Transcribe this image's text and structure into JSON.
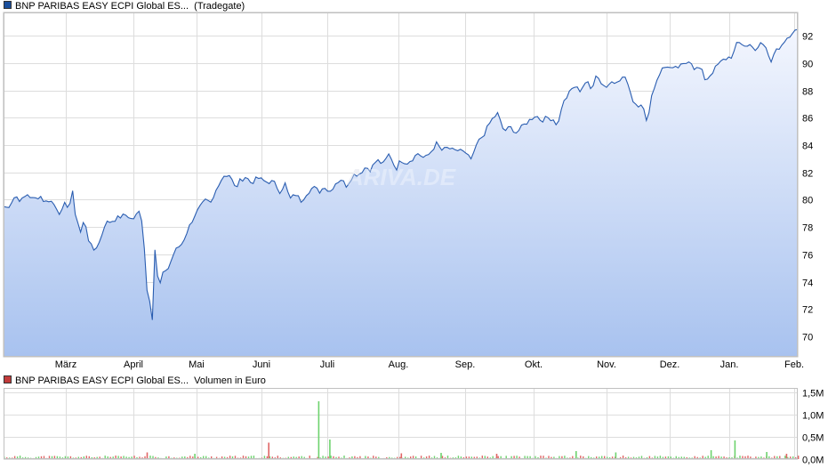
{
  "price_legend": {
    "name": "BNP PARIBAS EASY ECPI Global ES...",
    "exchange": "(Tradegate)",
    "color": "#1a4f9c"
  },
  "volume_legend": {
    "name": "BNP PARIBAS EASY ECPI Global ES...",
    "unit": "Volumen in Euro",
    "color": "#c23b3b"
  },
  "watermark": "ARIVA.DE",
  "colors": {
    "line": "#2a5db0",
    "area_top": "#f3f6fe",
    "area_bottom": "#a8c2ef",
    "grid": "#dddddd",
    "vol_up": "#6ed36e",
    "vol_down": "#e06666"
  },
  "chart_data": [
    {
      "type": "area",
      "series": [
        {
          "name": "BNP PARIBAS EASY ECPI Global ES...",
          "exchange": "Tradegate"
        }
      ],
      "x_ticks": [
        "März",
        "April",
        "Mai",
        "Juni",
        "Juli",
        "Aug.",
        "Sep.",
        "Okt.",
        "Nov.",
        "Dez.",
        "Jan.",
        "Feb."
      ],
      "y_ticks": [
        "70",
        "72",
        "74",
        "76",
        "78",
        "80",
        "82",
        "84",
        "86",
        "88",
        "90",
        "92"
      ],
      "ylim": [
        68.5,
        93.7
      ],
      "grid": true,
      "keypoints": [
        [
          0,
          79.5
        ],
        [
          0.005,
          79.4
        ],
        [
          0.015,
          80.3
        ],
        [
          0.022,
          79.9
        ],
        [
          0.03,
          80.4
        ],
        [
          0.038,
          80.0
        ],
        [
          0.046,
          80.3
        ],
        [
          0.052,
          79.8
        ],
        [
          0.058,
          80.0
        ],
        [
          0.066,
          79.5
        ],
        [
          0.072,
          78.9
        ],
        [
          0.078,
          79.8
        ],
        [
          0.082,
          79.4
        ],
        [
          0.087,
          80.5
        ],
        [
          0.09,
          79.1
        ],
        [
          0.097,
          77.6
        ],
        [
          0.102,
          78.6
        ],
        [
          0.108,
          76.8
        ],
        [
          0.114,
          76.3
        ],
        [
          0.121,
          76.9
        ],
        [
          0.128,
          78.3
        ],
        [
          0.135,
          78.4
        ],
        [
          0.145,
          78.7
        ],
        [
          0.155,
          78.9
        ],
        [
          0.162,
          78.5
        ],
        [
          0.172,
          79.2
        ],
        [
          0.176,
          77.9
        ],
        [
          0.18,
          73.5
        ],
        [
          0.185,
          72.5
        ],
        [
          0.188,
          71.0
        ],
        [
          0.191,
          77.1
        ],
        [
          0.195,
          73.4
        ],
        [
          0.202,
          74.8
        ],
        [
          0.208,
          75.0
        ],
        [
          0.213,
          75.9
        ],
        [
          0.218,
          76.4
        ],
        [
          0.225,
          76.8
        ],
        [
          0.232,
          77.8
        ],
        [
          0.24,
          78.8
        ],
        [
          0.248,
          79.5
        ],
        [
          0.254,
          79.9
        ],
        [
          0.262,
          79.7
        ],
        [
          0.27,
          81.1
        ],
        [
          0.278,
          81.8
        ],
        [
          0.285,
          81.8
        ],
        [
          0.292,
          80.8
        ],
        [
          0.298,
          81.4
        ],
        [
          0.305,
          81.7
        ],
        [
          0.312,
          81.2
        ],
        [
          0.32,
          81.6
        ],
        [
          0.33,
          81.3
        ],
        [
          0.34,
          81.3
        ],
        [
          0.348,
          80.6
        ],
        [
          0.355,
          81.2
        ],
        [
          0.36,
          80.0
        ],
        [
          0.368,
          80.4
        ],
        [
          0.375,
          79.9
        ],
        [
          0.382,
          80.5
        ],
        [
          0.39,
          80.9
        ],
        [
          0.398,
          80.6
        ],
        [
          0.405,
          81.0
        ],
        [
          0.41,
          80.5
        ],
        [
          0.418,
          81.2
        ],
        [
          0.425,
          81.5
        ],
        [
          0.432,
          81.0
        ],
        [
          0.44,
          81.8
        ],
        [
          0.448,
          81.9
        ],
        [
          0.456,
          82.4
        ],
        [
          0.462,
          82.2
        ],
        [
          0.47,
          82.9
        ],
        [
          0.478,
          82.6
        ],
        [
          0.486,
          83.4
        ],
        [
          0.494,
          82.2
        ],
        [
          0.5,
          82.9
        ],
        [
          0.508,
          82.7
        ],
        [
          0.515,
          83.0
        ],
        [
          0.522,
          83.4
        ],
        [
          0.53,
          83.0
        ],
        [
          0.537,
          83.4
        ],
        [
          0.545,
          84.1
        ],
        [
          0.552,
          83.6
        ],
        [
          0.56,
          83.8
        ],
        [
          0.568,
          83.5
        ],
        [
          0.575,
          83.7
        ],
        [
          0.582,
          83.3
        ],
        [
          0.59,
          82.9
        ],
        [
          0.596,
          84.1
        ],
        [
          0.605,
          84.8
        ],
        [
          0.614,
          85.8
        ],
        [
          0.622,
          86.3
        ],
        [
          0.63,
          85.0
        ],
        [
          0.638,
          85.3
        ],
        [
          0.646,
          84.9
        ],
        [
          0.654,
          85.4
        ],
        [
          0.662,
          85.8
        ],
        [
          0.67,
          86.2
        ],
        [
          0.677,
          85.8
        ],
        [
          0.685,
          86.0
        ],
        [
          0.692,
          85.9
        ],
        [
          0.698,
          85.4
        ],
        [
          0.703,
          86.9
        ],
        [
          0.71,
          87.6
        ],
        [
          0.718,
          88.3
        ],
        [
          0.726,
          88.0
        ],
        [
          0.734,
          88.7
        ],
        [
          0.74,
          88.0
        ],
        [
          0.746,
          89.2
        ],
        [
          0.752,
          88.6
        ],
        [
          0.759,
          88.2
        ],
        [
          0.766,
          88.8
        ],
        [
          0.773,
          88.5
        ],
        [
          0.78,
          89.0
        ],
        [
          0.786,
          88.6
        ],
        [
          0.792,
          87.3
        ],
        [
          0.798,
          86.9
        ],
        [
          0.804,
          87.1
        ],
        [
          0.81,
          85.5
        ],
        [
          0.815,
          87.4
        ],
        [
          0.822,
          88.7
        ],
        [
          0.828,
          89.5
        ],
        [
          0.836,
          89.8
        ],
        [
          0.842,
          89.5
        ],
        [
          0.85,
          89.7
        ],
        [
          0.858,
          89.9
        ],
        [
          0.864,
          90.3
        ],
        [
          0.87,
          89.6
        ],
        [
          0.878,
          89.6
        ],
        [
          0.884,
          88.7
        ],
        [
          0.892,
          89.3
        ],
        [
          0.9,
          89.9
        ],
        [
          0.906,
          90.2
        ],
        [
          0.912,
          90.4
        ],
        [
          0.918,
          90.5
        ],
        [
          0.924,
          91.5
        ],
        [
          0.93,
          91.4
        ],
        [
          0.936,
          91.2
        ],
        [
          0.942,
          91.4
        ],
        [
          0.948,
          90.8
        ],
        [
          0.954,
          91.5
        ],
        [
          0.96,
          91.1
        ],
        [
          0.966,
          90.0
        ],
        [
          0.972,
          91.2
        ],
        [
          0.978,
          91.0
        ],
        [
          0.984,
          91.5
        ],
        [
          0.99,
          91.9
        ],
        [
          0.995,
          92.1
        ],
        [
          0.999,
          92.9
        ],
        [
          1.0,
          92.6
        ]
      ]
    },
    {
      "type": "bar",
      "series": [
        {
          "name": "BNP PARIBAS EASY ECPI Global ES...",
          "unit": "Volumen in Euro"
        }
      ],
      "x_ticks": [
        "März",
        "April",
        "Mai",
        "Juni",
        "Juli",
        "Aug.",
        "Sep.",
        "Okt.",
        "Nov.",
        "Dez.",
        "Jan.",
        "Feb."
      ],
      "y_ticks": [
        "0,0M",
        "0,5M",
        "1,0M",
        "1,5M"
      ],
      "ylim": [
        0,
        1.6
      ],
      "grid": true,
      "spikes": [
        {
          "x": 0.396,
          "value": 1.3,
          "color": "up"
        },
        {
          "x": 0.41,
          "value": 0.44,
          "color": "up"
        },
        {
          "x": 0.333,
          "value": 0.37,
          "color": "down"
        },
        {
          "x": 0.92,
          "value": 0.42,
          "color": "up"
        },
        {
          "x": 0.89,
          "value": 0.2,
          "color": "up"
        },
        {
          "x": 0.77,
          "value": 0.15,
          "color": "up"
        },
        {
          "x": 0.72,
          "value": 0.18,
          "color": "up"
        },
        {
          "x": 0.62,
          "value": 0.12,
          "color": "down"
        },
        {
          "x": 0.55,
          "value": 0.14,
          "color": "up"
        },
        {
          "x": 0.5,
          "value": 0.13,
          "color": "down"
        },
        {
          "x": 0.24,
          "value": 0.12,
          "color": "up"
        },
        {
          "x": 0.18,
          "value": 0.15,
          "color": "down"
        },
        {
          "x": 0.96,
          "value": 0.16,
          "color": "up"
        },
        {
          "x": 0.985,
          "value": 0.12,
          "color": "down"
        }
      ]
    }
  ]
}
